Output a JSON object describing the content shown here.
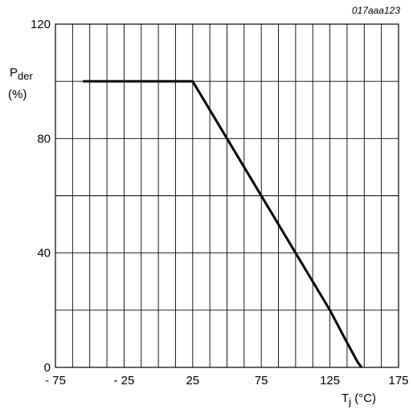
{
  "figure_code": "017aaa123",
  "chart_data": {
    "type": "line",
    "title": "",
    "xlabel": {
      "main": "T",
      "sub": "j",
      "unit": " (°C)"
    },
    "ylabel": {
      "main": "P",
      "sub": "der",
      "unit": "(%)"
    },
    "xlim": [
      -75,
      175
    ],
    "ylim": [
      0,
      120
    ],
    "x_ticks": [
      -75,
      -25,
      25,
      75,
      125,
      175
    ],
    "x_tick_labels": [
      "- 75",
      "- 25",
      "25",
      "75",
      "125",
      "175"
    ],
    "y_ticks": [
      0,
      40,
      80,
      120
    ],
    "y_tick_labels": [
      "0",
      "40",
      "80",
      "120"
    ],
    "grid": true,
    "series": [
      {
        "points": [
          {
            "x": -55,
            "y": 100
          },
          {
            "x": 25,
            "y": 100
          },
          {
            "x": 125,
            "y": 20
          },
          {
            "x": 136,
            "y": 10
          },
          {
            "x": 145,
            "y": 2
          },
          {
            "x": 148,
            "y": 0
          }
        ],
        "color": "#000000"
      }
    ]
  }
}
